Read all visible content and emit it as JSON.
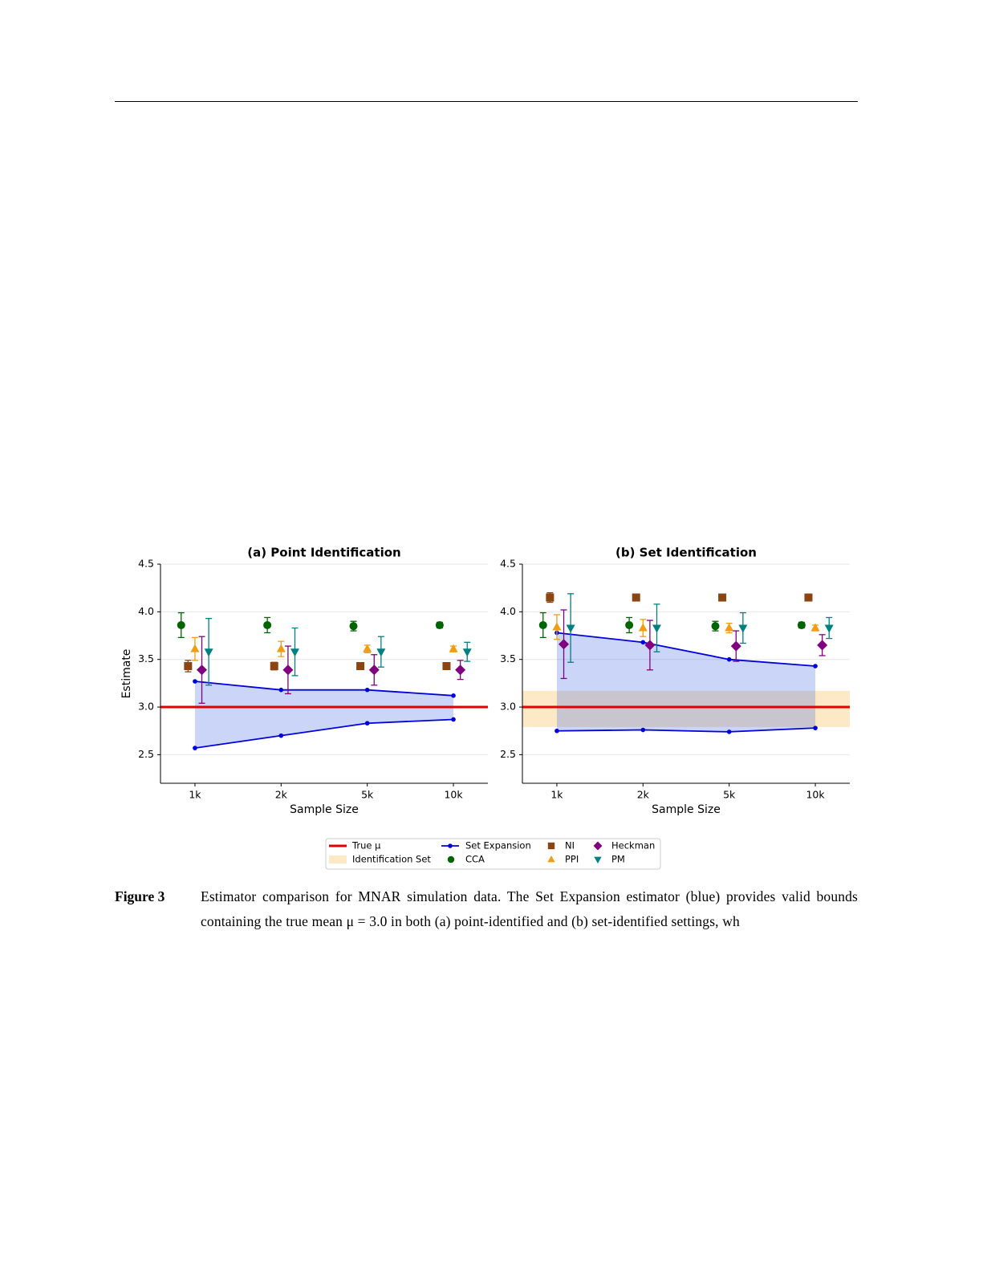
{
  "chart_data": [
    {
      "type": "errorbar",
      "title": "(a) Point Identification",
      "x_label": "Sample Size",
      "y_label": "Estimate",
      "categories": [
        "1k",
        "2k",
        "5k",
        "10k"
      ],
      "ylim": [
        2.2,
        4.5
      ],
      "yticks": [
        2.5,
        {
          "value": 3.0,
          "label": "3.0"
        },
        3.5,
        {
          "value": 4.0,
          "label": "4.0"
        },
        4.5
      ],
      "grid": true,
      "reference_line": {
        "name": "True μ",
        "value": 3.0,
        "color": "#e00000"
      },
      "set_expansion": {
        "name": "Set Expansion",
        "color": "#0000dd",
        "upper": [
          3.27,
          3.18,
          3.18,
          3.12
        ],
        "lower": [
          2.57,
          2.7,
          2.83,
          2.87
        ]
      },
      "series": [
        {
          "name": "CCA",
          "marker": "circle",
          "color": "#006400",
          "values": [
            3.86,
            3.86,
            3.85,
            3.86
          ],
          "errors": [
            0.13,
            0.08,
            0.05,
            0.03
          ]
        },
        {
          "name": "NI",
          "marker": "square",
          "color": "#8b4513",
          "values": [
            3.43,
            3.43,
            3.43,
            3.43
          ],
          "errors": [
            0.06,
            0.04,
            0.02,
            0.01
          ]
        },
        {
          "name": "PPI",
          "marker": "triangle-up",
          "color": "#f39c12",
          "values": [
            3.61,
            3.61,
            3.61,
            3.61
          ],
          "errors": [
            0.12,
            0.08,
            0.04,
            0.03
          ]
        },
        {
          "name": "Heckman",
          "marker": "diamond",
          "color": "#800080",
          "values": [
            3.39,
            3.39,
            3.39,
            3.39
          ],
          "errors": [
            0.35,
            0.25,
            0.16,
            0.1
          ]
        },
        {
          "name": "PM",
          "marker": "triangle-down",
          "color": "#008080",
          "values": [
            3.58,
            3.58,
            3.58,
            3.58
          ],
          "errors": [
            0.35,
            0.25,
            0.16,
            0.1
          ]
        }
      ]
    },
    {
      "type": "errorbar",
      "title": "(b) Set Identification",
      "x_label": "Sample Size",
      "categories": [
        "1k",
        "2k",
        "5k",
        "10k"
      ],
      "ylim": [
        2.2,
        4.5
      ],
      "yticks": [
        2.5,
        {
          "value": 3.0,
          "label": "3.0"
        },
        3.5,
        {
          "value": 4.0,
          "label": "4.0"
        },
        4.5
      ],
      "grid": true,
      "reference_line": {
        "value": 3.0,
        "color": "#e00000"
      },
      "band": {
        "name": "Identification Set",
        "range": [
          2.79,
          3.17
        ],
        "color": "#fbd38d"
      },
      "set_expansion": {
        "color": "#0000dd",
        "upper": [
          3.78,
          3.68,
          3.5,
          3.43
        ],
        "lower": [
          2.75,
          2.76,
          2.74,
          2.78
        ]
      },
      "series": [
        {
          "marker": "circle",
          "color": "#006400",
          "values": [
            3.86,
            3.86,
            3.85,
            3.86
          ],
          "errors": [
            0.13,
            0.08,
            0.05,
            0.03
          ]
        },
        {
          "marker": "square",
          "color": "#8b4513",
          "values": [
            4.15,
            4.15,
            4.15,
            4.15
          ],
          "errors": [
            0.05,
            0.03,
            0.01,
            0.01
          ]
        },
        {
          "marker": "triangle-up",
          "color": "#f39c12",
          "values": [
            3.84,
            3.83,
            3.83,
            3.83
          ],
          "errors": [
            0.13,
            0.09,
            0.05,
            0.03
          ]
        },
        {
          "marker": "diamond",
          "color": "#800080",
          "values": [
            3.66,
            3.65,
            3.64,
            3.65
          ],
          "errors": [
            0.36,
            0.26,
            0.16,
            0.11
          ]
        },
        {
          "marker": "triangle-down",
          "color": "#008080",
          "values": [
            3.83,
            3.83,
            3.83,
            3.83
          ],
          "errors": [
            0.36,
            0.25,
            0.16,
            0.11
          ]
        }
      ]
    }
  ],
  "figure": {
    "label": "Figure 3",
    "caption": "Estimator comparison for MNAR simulation data. The Set Expansion estimator (blue) provides valid bounds containing the true mean μ = 3.0 in both (a) point-identified and (b) set-identified settings, wh"
  }
}
